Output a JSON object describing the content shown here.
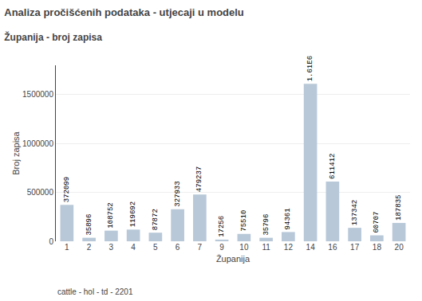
{
  "chart_data": {
    "type": "bar",
    "title": "Analiza pročišćenih podataka - utjecaji u modelu",
    "subtitle": "Županija - broj zapisa",
    "xlabel": "Županija",
    "ylabel": "Broj zapisa",
    "annotations": [
      "cattle - hol - td - 2201"
    ],
    "categories": [
      "1",
      "2",
      "3",
      "4",
      "5",
      "6",
      "7",
      "9",
      "10",
      "11",
      "12",
      "14",
      "16",
      "17",
      "18",
      "20"
    ],
    "values": [
      372099,
      35896,
      108752,
      119692,
      87872,
      327933,
      479237,
      17256,
      75510,
      35796,
      94361,
      1610000,
      611412,
      137342,
      60707,
      187835
    ],
    "value_labels": [
      "372099",
      "35896",
      "108752",
      "119692",
      "87872",
      "327933",
      "479237",
      "17256",
      "75510",
      "35796",
      "94361",
      "1.61E6",
      "611412",
      "137342",
      "60707",
      "187835"
    ],
    "data_labels": true,
    "color": "#b8c8d8",
    "ylim": [
      0,
      1800000
    ],
    "yticks": [
      0,
      500000,
      1000000,
      1500000
    ],
    "grid": true
  }
}
